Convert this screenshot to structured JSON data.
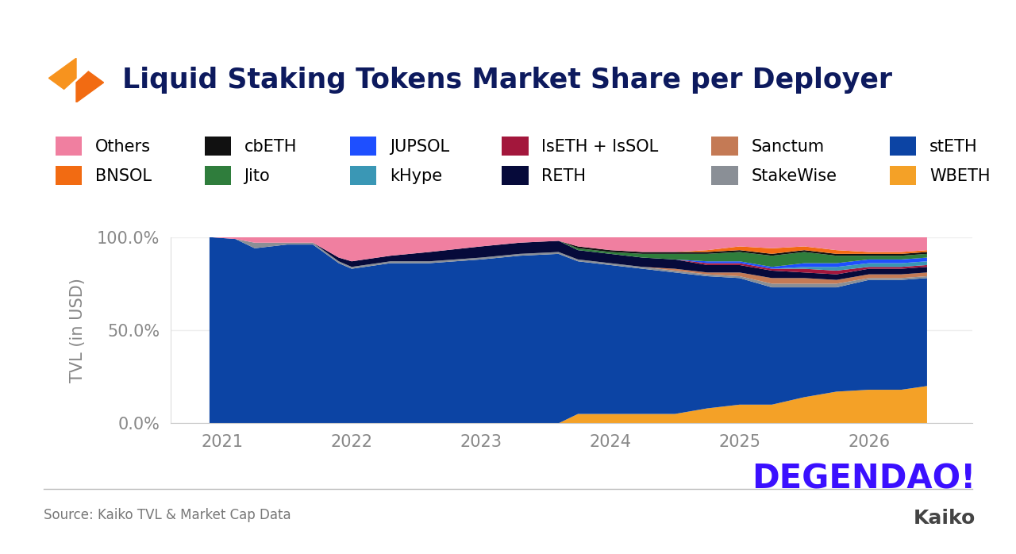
{
  "chart_data": {
    "type": "area",
    "stacked": true,
    "title": "Liquid Staking Tokens Market Share per Deployer",
    "y_label": "TVL (in USD)",
    "source": "Source: Kaiko TVL & Market Cap Data",
    "annotations": [
      "DEGENDAO!",
      "Kaiko"
    ],
    "x": [
      2020.9,
      2021.1,
      2021.25,
      2021.5,
      2021.7,
      2021.9,
      2022.0,
      2022.3,
      2022.6,
      2023.0,
      2023.3,
      2023.6,
      2023.75,
      2024.0,
      2024.25,
      2024.5,
      2024.75,
      2025.0,
      2025.25,
      2025.5,
      2025.75,
      2026.0,
      2026.25,
      2026.45
    ],
    "xlim": [
      2020.6,
      2026.8
    ],
    "xticks": [
      2021,
      2022,
      2023,
      2024,
      2025,
      2026
    ],
    "ylim": [
      0,
      100
    ],
    "yticks": [
      {
        "value": 0,
        "label": "0.0%"
      },
      {
        "value": 50,
        "label": "50.0%"
      },
      {
        "value": 100,
        "label": "100.0%"
      }
    ],
    "grid": true,
    "legend": "upper left",
    "series": [
      {
        "name": "WBETH",
        "color": "#f4a127",
        "values": [
          0,
          0,
          0,
          0,
          0,
          0,
          0,
          0,
          0,
          0,
          0,
          0,
          5,
          5,
          5,
          5,
          8,
          10,
          10,
          14,
          17,
          18,
          18,
          20
        ]
      },
      {
        "name": "stETH",
        "color": "#0c44a4",
        "values": [
          100,
          99,
          94,
          96,
          96,
          86,
          83,
          86,
          86,
          88,
          90,
          91,
          82,
          80,
          78,
          76,
          71,
          68,
          63,
          59,
          56,
          59,
          59,
          58
        ]
      },
      {
        "name": "StakeWise",
        "color": "#8a8f96",
        "values": [
          0,
          0,
          3,
          1,
          1,
          1,
          1,
          1,
          1,
          1,
          1,
          1,
          1,
          1,
          1,
          1,
          1,
          1,
          2,
          2,
          2,
          1,
          1,
          1
        ]
      },
      {
        "name": "Sanctum",
        "color": "#c47a55",
        "values": [
          0,
          0,
          0,
          0,
          0,
          0,
          0,
          0,
          0,
          0,
          0,
          0,
          0,
          0,
          0,
          1,
          1,
          2,
          3,
          3,
          2,
          2,
          2,
          2
        ]
      },
      {
        "name": "RETH",
        "color": "#060a3a",
        "values": [
          0,
          0,
          0,
          0,
          0,
          2,
          3,
          3,
          5,
          6,
          6,
          6,
          5,
          5,
          5,
          5,
          4,
          4,
          4,
          3,
          3,
          3,
          3,
          3
        ]
      },
      {
        "name": "lsETH + lsSOL",
        "color": "#a3173c",
        "values": [
          0,
          0,
          0,
          0,
          0,
          0,
          0,
          0,
          0,
          0,
          0,
          0,
          0,
          0,
          0,
          0,
          1,
          1,
          1,
          2,
          2,
          1,
          1,
          1
        ]
      },
      {
        "name": "kHype",
        "color": "#3a97b5",
        "values": [
          0,
          0,
          0,
          0,
          0,
          0,
          0,
          0,
          0,
          0,
          0,
          0,
          0,
          0,
          0,
          0,
          0,
          0,
          0,
          1,
          2,
          2,
          2,
          2
        ]
      },
      {
        "name": "JUPSOL",
        "color": "#1e4fff",
        "values": [
          0,
          0,
          0,
          0,
          0,
          0,
          0,
          0,
          0,
          0,
          0,
          0,
          0,
          0,
          0,
          0,
          1,
          1,
          1,
          2,
          2,
          2,
          2,
          2
        ]
      },
      {
        "name": "Jito",
        "color": "#2f7d3c",
        "values": [
          0,
          0,
          0,
          0,
          0,
          0,
          0,
          0,
          0,
          0,
          0,
          0,
          1,
          1,
          2,
          3,
          4,
          5,
          6,
          6,
          4,
          2,
          2,
          2
        ]
      },
      {
        "name": "cbETH",
        "color": "#111111",
        "values": [
          0,
          0,
          0,
          0,
          0,
          0,
          0,
          0,
          0,
          0,
          0,
          0,
          1,
          1,
          1,
          1,
          1,
          1,
          1,
          1,
          1,
          1,
          1,
          1
        ]
      },
      {
        "name": "BNSOL",
        "color": "#f26b12",
        "values": [
          0,
          0,
          0,
          0,
          0,
          0,
          0,
          0,
          0,
          0,
          0,
          0,
          0,
          0,
          0,
          0,
          1,
          2,
          3,
          2,
          2,
          1,
          1,
          1
        ]
      },
      {
        "name": "Others",
        "color": "#f07fa0",
        "values": [
          0,
          1,
          3,
          3,
          3,
          11,
          13,
          10,
          8,
          5,
          3,
          2,
          5,
          7,
          8,
          8,
          7,
          5,
          6,
          5,
          7,
          8,
          8,
          7
        ]
      }
    ]
  }
}
